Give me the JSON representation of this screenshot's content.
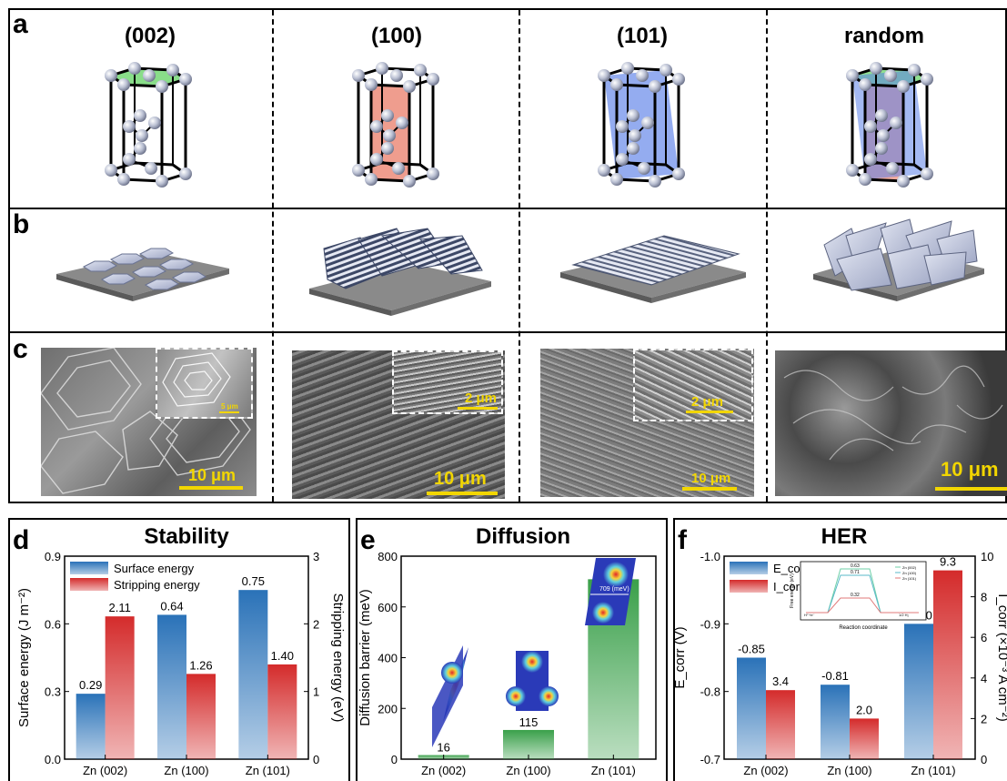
{
  "top": {
    "panel_a": "a",
    "panel_b": "b",
    "panel_c": "c",
    "columns": [
      "(002)",
      "(100)",
      "(101)",
      "random"
    ],
    "sem_scales": [
      "10 μm",
      "10 μm",
      "10 μm",
      "10 μm"
    ],
    "inset_scales": [
      "5 μm",
      "2 μm",
      "2 μm"
    ]
  },
  "chart_data": [
    {
      "panel": "d",
      "type": "bar",
      "title": "Stability",
      "categories": [
        "Zn (002)",
        "Zn (100)",
        "Zn (101)"
      ],
      "series": [
        {
          "name": "Surface energy",
          "axis": "left",
          "values": [
            0.29,
            0.64,
            0.75
          ],
          "labels": [
            "0.29",
            "0.64",
            "0.75"
          ],
          "color": "#2a72b8"
        },
        {
          "name": "Stripping energy",
          "axis": "right",
          "values": [
            2.11,
            1.26,
            1.4
          ],
          "labels": [
            "2.11",
            "1.26",
            "1.40"
          ],
          "color": "#d42b2b"
        }
      ],
      "ylabel": "Surface energy (J m⁻²)",
      "y2label": "Stripping energy (eV)",
      "ylim": [
        0,
        0.9
      ],
      "y2lim": [
        0,
        3
      ],
      "yticks": [
        "0.0",
        "0.3",
        "0.6",
        "0.9"
      ],
      "y2ticks": [
        "0",
        "1",
        "2",
        "3"
      ],
      "legend": "top-left"
    },
    {
      "panel": "e",
      "type": "bar",
      "title": "Diffusion",
      "categories": [
        "Zn (002)",
        "Zn (100)",
        "Zn (101)"
      ],
      "series": [
        {
          "values": [
            16,
            115,
            709
          ],
          "labels": [
            "16",
            "115",
            "709"
          ],
          "color": "#3aa04a"
        }
      ],
      "ylabel": "Diffusion barrier (meV)",
      "ylim": [
        0,
        800
      ],
      "yticks": [
        "0",
        "200",
        "400",
        "600",
        "800"
      ],
      "inset_label": "709 (meV)"
    },
    {
      "panel": "f",
      "type": "bar",
      "title": "HER",
      "categories": [
        "Zn (002)",
        "Zn (100)",
        "Zn (101)"
      ],
      "series": [
        {
          "name": "E_corr",
          "axis": "left",
          "values": [
            -0.85,
            -0.81,
            -0.9
          ],
          "labels": [
            "-0.85",
            "-0.81",
            "-0.90"
          ],
          "color": "#2a72b8"
        },
        {
          "name": "I_corr",
          "axis": "right",
          "values": [
            3.4,
            2.0,
            9.3
          ],
          "labels": [
            "3.4",
            "2.0",
            "9.3"
          ],
          "color": "#d42b2b"
        }
      ],
      "ylabel": "E_corr (V)",
      "y2label": "I_corr (×10⁻³ A cm⁻²)",
      "ylim": [
        -0.7,
        -1.0
      ],
      "y2lim": [
        0,
        10
      ],
      "yticks": [
        "-0.7",
        "-0.8",
        "-0.9",
        "-1.0"
      ],
      "y2ticks": [
        "0",
        "2",
        "4",
        "6",
        "8",
        "10"
      ],
      "legend": "top-left",
      "inset": {
        "type": "line",
        "xlabel": "Reaction coordinate",
        "ylabel": "Free energy (eV)",
        "values": [
          "0.63",
          "0.71",
          "0.32"
        ],
        "legend": [
          "Zn (002)",
          "Zn (100)",
          "Zn (101)"
        ],
        "start_label": "H⁺+e⁻",
        "end_label": "1/2 H₂"
      }
    }
  ]
}
